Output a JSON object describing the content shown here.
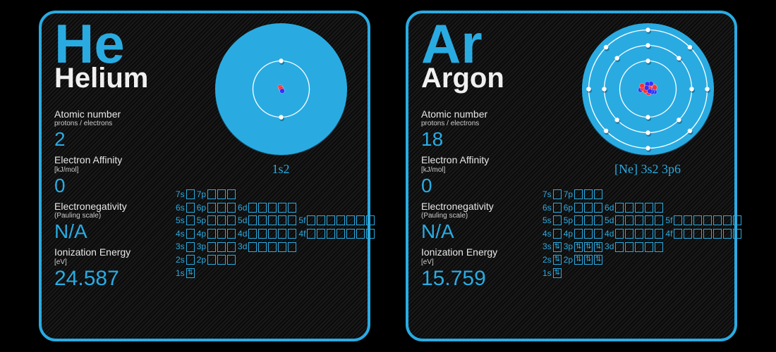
{
  "cards": [
    {
      "symbol": "He",
      "name": "Helium",
      "config": "1s2",
      "atomic_label": "Atomic number",
      "atomic_sub": "protons / electrons",
      "atomic_number": "2",
      "affinity_label": "Electron Affinity",
      "affinity_unit": "[kJ/mol]",
      "affinity": "0",
      "eneg_label": "Electronegativity",
      "eneg_unit": "(Pauling scale)",
      "eneg": "N/A",
      "ion_label": "Ionization Energy",
      "ion_unit": "[eV]",
      "ion": "24.587",
      "shells": [
        {
          "r": 40,
          "electrons": 2
        }
      ],
      "nucleus_particles": 4,
      "orbitals": {
        "rows": [
          [
            {
              "l": "7s",
              "n": 1,
              "f": 0
            },
            {
              "l": "7p",
              "n": 3,
              "f": 0
            }
          ],
          [
            {
              "l": "6s",
              "n": 1,
              "f": 0
            },
            {
              "l": "6p",
              "n": 3,
              "f": 0
            },
            {
              "l": "6d",
              "n": 5,
              "f": 0
            }
          ],
          [
            {
              "l": "5s",
              "n": 1,
              "f": 0
            },
            {
              "l": "5p",
              "n": 3,
              "f": 0
            },
            {
              "l": "5d",
              "n": 5,
              "f": 0
            },
            {
              "l": "5f",
              "n": 7,
              "f": 0
            }
          ],
          [
            {
              "l": "4s",
              "n": 1,
              "f": 0
            },
            {
              "l": "4p",
              "n": 3,
              "f": 0
            },
            {
              "l": "4d",
              "n": 5,
              "f": 0
            },
            {
              "l": "4f",
              "n": 7,
              "f": 0
            }
          ],
          [
            {
              "l": "3s",
              "n": 1,
              "f": 0
            },
            {
              "l": "3p",
              "n": 3,
              "f": 0
            },
            {
              "l": "3d",
              "n": 5,
              "f": 0
            }
          ],
          [
            {
              "l": "2s",
              "n": 1,
              "f": 0
            },
            {
              "l": "2p",
              "n": 3,
              "f": 0
            }
          ],
          [
            {
              "l": "1s",
              "n": 1,
              "f": 1
            }
          ]
        ]
      }
    },
    {
      "symbol": "Ar",
      "name": "Argon",
      "config": "[Ne] 3s2 3p6",
      "atomic_label": "Atomic number",
      "atomic_sub": "protons / electrons",
      "atomic_number": "18",
      "affinity_label": "Electron Affinity",
      "affinity_unit": "[kJ/mol]",
      "affinity": "0",
      "eneg_label": "Electronegativity",
      "eneg_unit": "(Pauling scale)",
      "eneg": "N/A",
      "ion_label": "Ionization Energy",
      "ion_unit": "[eV]",
      "ion": "15.759",
      "shells": [
        {
          "r": 40,
          "electrons": 2
        },
        {
          "r": 62,
          "electrons": 8
        },
        {
          "r": 84,
          "electrons": 8
        }
      ],
      "nucleus_particles": 20,
      "orbitals": {
        "rows": [
          [
            {
              "l": "7s",
              "n": 1,
              "f": 0
            },
            {
              "l": "7p",
              "n": 3,
              "f": 0
            }
          ],
          [
            {
              "l": "6s",
              "n": 1,
              "f": 0
            },
            {
              "l": "6p",
              "n": 3,
              "f": 0
            },
            {
              "l": "6d",
              "n": 5,
              "f": 0
            }
          ],
          [
            {
              "l": "5s",
              "n": 1,
              "f": 0
            },
            {
              "l": "5p",
              "n": 3,
              "f": 0
            },
            {
              "l": "5d",
              "n": 5,
              "f": 0
            },
            {
              "l": "5f",
              "n": 7,
              "f": 0
            }
          ],
          [
            {
              "l": "4s",
              "n": 1,
              "f": 0
            },
            {
              "l": "4p",
              "n": 3,
              "f": 0
            },
            {
              "l": "4d",
              "n": 5,
              "f": 0
            },
            {
              "l": "4f",
              "n": 7,
              "f": 0
            }
          ],
          [
            {
              "l": "3s",
              "n": 1,
              "f": 1
            },
            {
              "l": "3p",
              "n": 3,
              "f": 3
            },
            {
              "l": "3d",
              "n": 5,
              "f": 0
            }
          ],
          [
            {
              "l": "2s",
              "n": 1,
              "f": 1
            },
            {
              "l": "2p",
              "n": 3,
              "f": 3
            }
          ],
          [
            {
              "l": "1s",
              "n": 1,
              "f": 1
            }
          ]
        ]
      }
    }
  ],
  "style": {
    "accent": "#29abe2",
    "disc_fill": "#29abe2",
    "electron_color": "#ffffff",
    "nucleus_colors": [
      "#ff3030",
      "#3030ff"
    ],
    "card_bg": "#111111"
  }
}
